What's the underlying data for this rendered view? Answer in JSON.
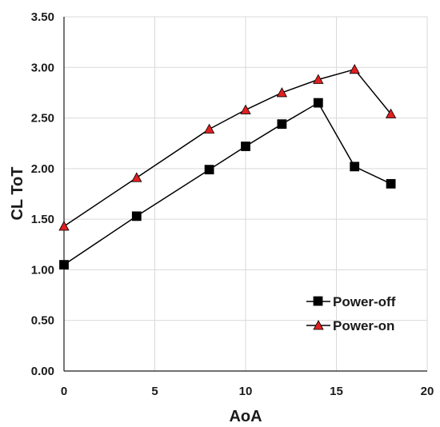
{
  "chart_data": {
    "type": "line",
    "title": "",
    "xlabel": "AoA",
    "ylabel": "CL ToT",
    "xlim": [
      0,
      20
    ],
    "ylim": [
      0,
      3.5
    ],
    "xticks": [
      0,
      5,
      10,
      15,
      20
    ],
    "yticks": [
      0,
      0.5,
      1.0,
      1.5,
      2.0,
      2.5,
      3.0,
      3.5
    ],
    "xtick_labels": [
      "0",
      "5",
      "10",
      "15",
      "20"
    ],
    "ytick_labels": [
      "0.00",
      "0.50",
      "1.00",
      "1.50",
      "2.00",
      "2.50",
      "3.00",
      "3.50"
    ],
    "grid": true,
    "legend_position": "bottom-right",
    "series": [
      {
        "name": "Power-off",
        "marker": "square",
        "line_color": "#000000",
        "marker_fill": "#000000",
        "x": [
          0,
          4,
          8,
          10,
          12,
          14,
          16,
          18
        ],
        "y": [
          1.05,
          1.53,
          1.99,
          2.22,
          2.44,
          2.65,
          2.02,
          1.85
        ]
      },
      {
        "name": "Power-on",
        "marker": "triangle",
        "line_color": "#000000",
        "marker_fill": "#e02020",
        "x": [
          0,
          4,
          8,
          10,
          12,
          14,
          16,
          18
        ],
        "y": [
          1.43,
          1.91,
          2.39,
          2.58,
          2.75,
          2.88,
          2.98,
          2.54
        ]
      }
    ]
  }
}
